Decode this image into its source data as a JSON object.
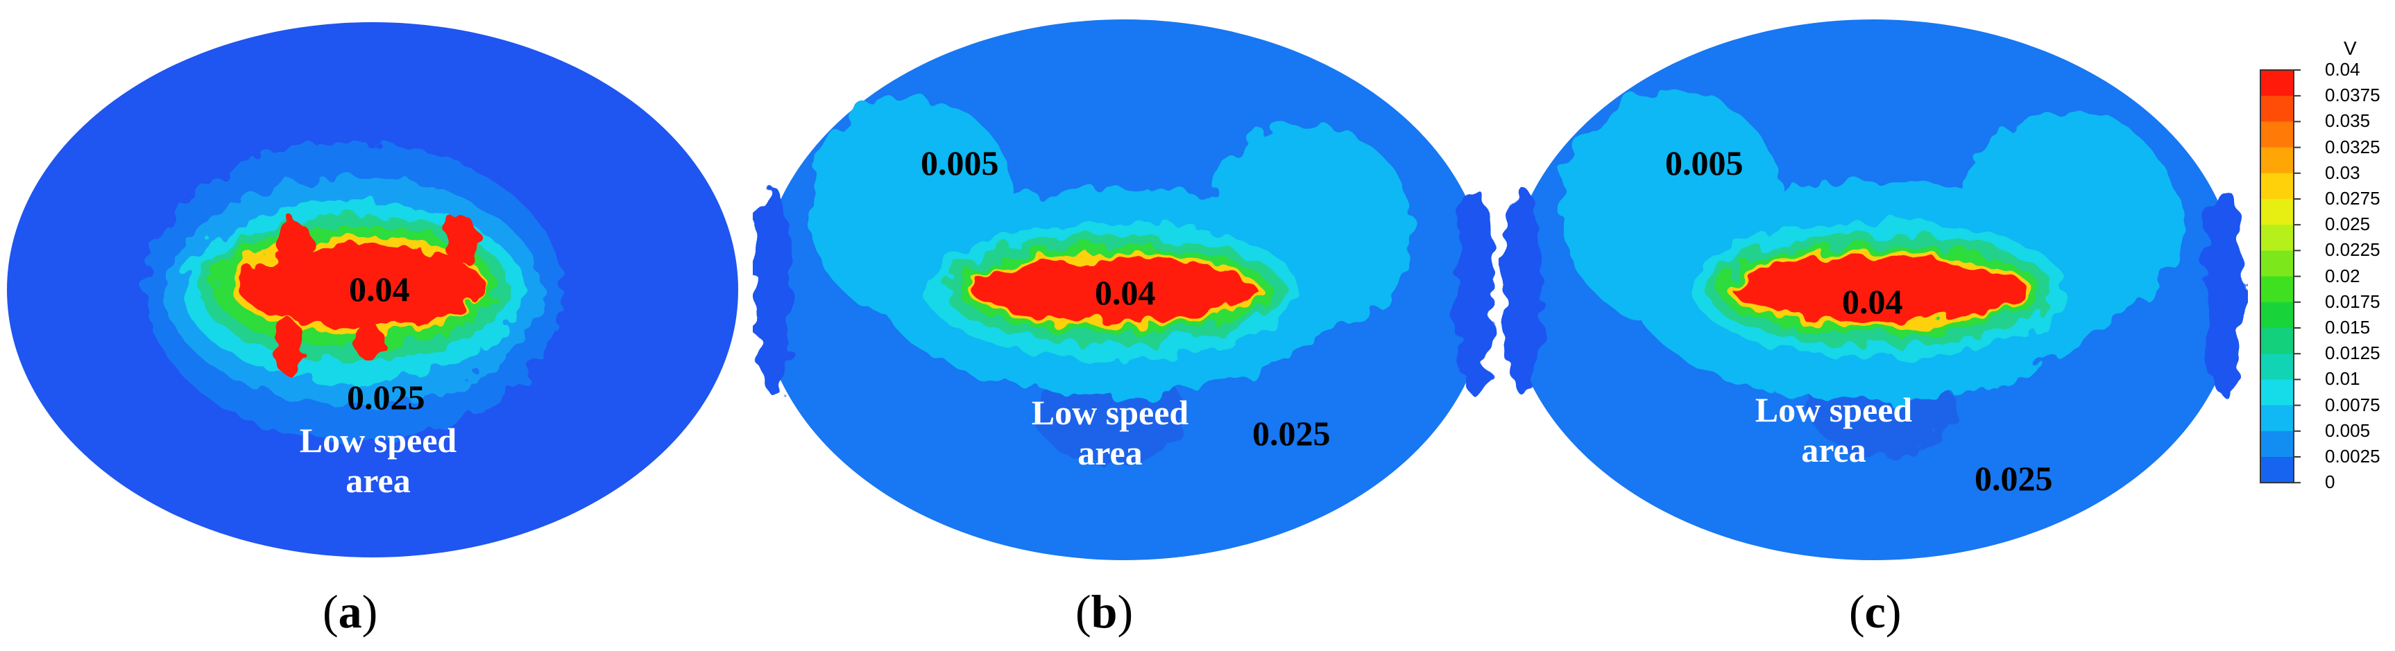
{
  "panels": [
    {
      "caption_open": "(",
      "caption_letter": "a",
      "caption_close": ")",
      "background_level": "#1f55f0",
      "label_center": "0.04",
      "label_lower": "0.025",
      "low_speed_line1": "Low speed",
      "low_speed_line2": "area"
    },
    {
      "caption_open": "(",
      "caption_letter": "b",
      "caption_close": ")",
      "background_level": "#1877f2",
      "label_center": "0.04",
      "label_upper": "0.005",
      "label_lower": "0.025",
      "low_speed_line1": "Low speed",
      "low_speed_line2": "area"
    },
    {
      "caption_open": "(",
      "caption_letter": "c",
      "caption_close": ")",
      "background_level": "#1877f2",
      "label_center": "0.04",
      "label_upper": "0.005",
      "label_lower": "0.025",
      "low_speed_line1": "Low speed",
      "low_speed_line2": "area"
    }
  ],
  "legend": {
    "title": "V",
    "levels": [
      "0.04",
      "0.0375",
      "0.035",
      "0.0325",
      "0.03",
      "0.0275",
      "0.025",
      "0.0225",
      "0.02",
      "0.0175",
      "0.015",
      "0.0125",
      "0.01",
      "0.0075",
      "0.005",
      "0.0025",
      "0"
    ],
    "colors": [
      "#ff1a0a",
      "#ff4d08",
      "#ff7a06",
      "#ffa505",
      "#ffd10a",
      "#e6ee12",
      "#b6f01a",
      "#7ce81c",
      "#3fe020",
      "#18d43a",
      "#12d07c",
      "#10d4b4",
      "#15dce8",
      "#10b8f4",
      "#128ef2",
      "#1764f0",
      "#1d3ad8"
    ]
  }
}
